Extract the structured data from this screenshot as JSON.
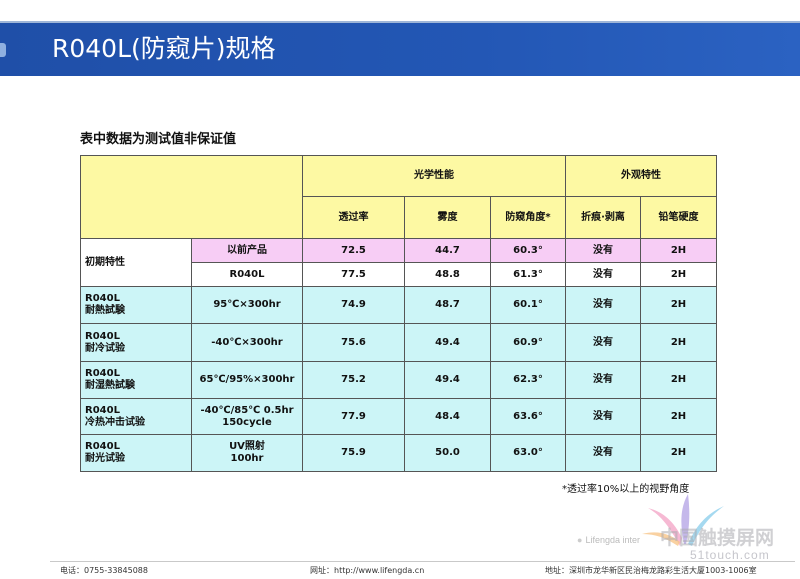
{
  "slide": {
    "title": "R040L(防窥片)规格"
  },
  "caption": "表中数据为测试值非保证值",
  "table": {
    "group_optical": "光学性能",
    "group_appearance": "外观特性",
    "headers": [
      "透过率",
      "雾度",
      "防窥角度*",
      "折痕·剥离",
      "铅笔硬度"
    ],
    "initial_label": "初期特性",
    "initial_rows": [
      {
        "sample": "以前产品",
        "transmittance": "72.5",
        "haze": "44.7",
        "angle": "60.3°",
        "crease": "没有",
        "hardness": "2H"
      },
      {
        "sample": "R040L",
        "transmittance": "77.5",
        "haze": "48.8",
        "angle": "61.3°",
        "crease": "没有",
        "hardness": "2H"
      }
    ],
    "test_rows": [
      {
        "name_line1": "R040L",
        "name_line2": "耐熱試験",
        "condition_line1": "95℃×300hr",
        "condition_line2": "",
        "transmittance": "74.9",
        "haze": "48.7",
        "angle": "60.1°",
        "crease": "没有",
        "hardness": "2H"
      },
      {
        "name_line1": "R040L",
        "name_line2": "耐冷试验",
        "condition_line1": "-40℃×300hr",
        "condition_line2": "",
        "transmittance": "75.6",
        "haze": "49.4",
        "angle": "60.9°",
        "crease": "没有",
        "hardness": "2H"
      },
      {
        "name_line1": "R040L",
        "name_line2": "耐湿熱試験",
        "condition_line1": "65℃/95%×300hr",
        "condition_line2": "",
        "transmittance": "75.2",
        "haze": "49.4",
        "angle": "62.3°",
        "crease": "没有",
        "hardness": "2H"
      },
      {
        "name_line1": "R040L",
        "name_line2": "冷热冲击试验",
        "condition_line1": "-40℃/85℃ 0.5hr",
        "condition_line2": "150cycle",
        "transmittance": "77.9",
        "haze": "48.4",
        "angle": "63.6°",
        "crease": "没有",
        "hardness": "2H"
      },
      {
        "name_line1": "R040L",
        "name_line2": "耐光试验",
        "condition_line1": "UV照射",
        "condition_line2": "100hr",
        "transmittance": "75.9",
        "haze": "50.0",
        "angle": "63.0°",
        "crease": "没有",
        "hardness": "2H"
      }
    ]
  },
  "note": "*透过率10%以上的视野角度",
  "footer": {
    "phone": "电话：0755-33845088",
    "website": "网址：http://www.lifengda.cn",
    "address": "地址：深圳市龙华新区民治梅龙路彩生活大厦1003-1006室"
  },
  "watermark": {
    "company": "Lifengda inter",
    "site_name": "中国触摸屏网",
    "site_url": "51touch.com"
  }
}
